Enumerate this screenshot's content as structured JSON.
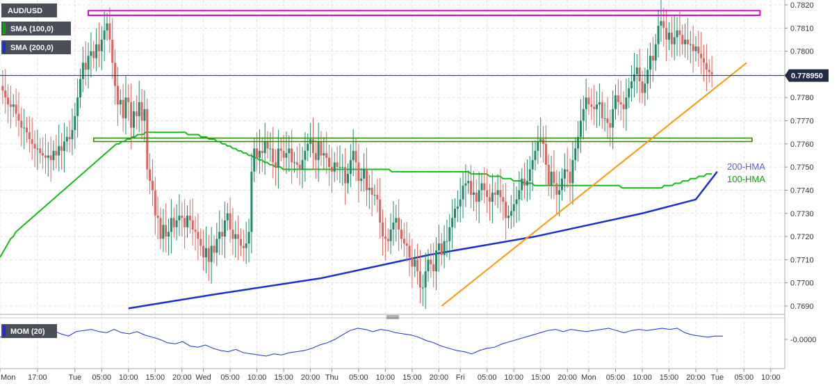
{
  "chart_data": {
    "type": "candlestick",
    "symbol": "AUD/USD",
    "legend": [
      {
        "label": "SMA (100,0)",
        "color": "#00aa00"
      },
      {
        "label": "SMA (200,0)",
        "color": "#1a2fd0"
      }
    ],
    "colors": {
      "up": "#1d8a69",
      "down": "#e0625b",
      "grid": "#dadada",
      "sma100": "#11c011",
      "sma200": "#1a2fd0",
      "trendline": "#ff9900",
      "resistance": "#dd00dd",
      "support": "#2d8a00",
      "momentum": "#1a2fd0"
    },
    "y_axis": {
      "min": 0.7685,
      "max": 0.7822,
      "ticks": [
        "0.7690",
        "0.7700",
        "0.7710",
        "0.7720",
        "0.7730",
        "0.7740",
        "0.7750",
        "0.7760",
        "0.7770",
        "0.7780",
        "0.7790",
        "0.7800",
        "0.7810",
        "0.7820"
      ]
    },
    "x_axis": {
      "ticks": [
        {
          "label": "Mon",
          "bar": 0
        },
        {
          "label": "17:00",
          "bar": 14
        },
        {
          "label": "Tue",
          "bar": 28
        },
        {
          "label": "05:00",
          "bar": 38
        },
        {
          "label": "10:00",
          "bar": 48
        },
        {
          "label": "15:00",
          "bar": 58
        },
        {
          "label": "20:00",
          "bar": 68
        },
        {
          "label": "Wed",
          "bar": 76
        },
        {
          "label": "05:00",
          "bar": 86
        },
        {
          "label": "10:00",
          "bar": 96
        },
        {
          "label": "15:00",
          "bar": 106
        },
        {
          "label": "20:00",
          "bar": 116
        },
        {
          "label": "Thu",
          "bar": 124
        },
        {
          "label": "05:00",
          "bar": 134
        },
        {
          "label": "10:00",
          "bar": 144
        },
        {
          "label": "15:00",
          "bar": 154
        },
        {
          "label": "20:00",
          "bar": 164
        },
        {
          "label": "Fri",
          "bar": 172
        },
        {
          "label": "05:00",
          "bar": 182
        },
        {
          "label": "10:00",
          "bar": 192
        },
        {
          "label": "15:00",
          "bar": 202
        },
        {
          "label": "20:00",
          "bar": 212
        },
        {
          "label": "Mon",
          "bar": 220
        },
        {
          "label": "05:00",
          "bar": 230
        },
        {
          "label": "10:00",
          "bar": 240
        },
        {
          "label": "15:00",
          "bar": 250
        },
        {
          "label": "20:00",
          "bar": 260
        },
        {
          "label": "Tue",
          "bar": 268
        },
        {
          "label": "05:00",
          "bar": 278
        },
        {
          "label": "10:00",
          "bar": 288
        }
      ]
    },
    "current_price": "0.778950",
    "current_value": 0.77895,
    "bar_step": 3.85,
    "closes": [
      0.7785,
      0.7783,
      0.778,
      0.7777,
      0.7776,
      0.7777,
      0.7773,
      0.777,
      0.7767,
      0.7767,
      0.7765,
      0.7762,
      0.776,
      0.7758,
      0.7758,
      0.7756,
      0.7755,
      0.7754,
      0.7755,
      0.7753,
      0.7757,
      0.7755,
      0.7759,
      0.7757,
      0.7761,
      0.7763,
      0.7762,
      0.7766,
      0.7772,
      0.778,
      0.7788,
      0.7795,
      0.7792,
      0.7798,
      0.78,
      0.7797,
      0.7803,
      0.78,
      0.7805,
      0.7809,
      0.7812,
      0.7805,
      0.7795,
      0.7785,
      0.7777,
      0.7779,
      0.7771,
      0.778,
      0.7778,
      0.7767,
      0.7774,
      0.7772,
      0.7778,
      0.777,
      0.7775,
      0.7749,
      0.7744,
      0.774,
      0.7729,
      0.7728,
      0.7719,
      0.7725,
      0.772,
      0.7722,
      0.7728,
      0.7724,
      0.7727,
      0.7729,
      0.7728,
      0.7724,
      0.7729,
      0.7727,
      0.7723,
      0.7722,
      0.7719,
      0.7716,
      0.7711,
      0.7715,
      0.7709,
      0.7716,
      0.7713,
      0.7719,
      0.7722,
      0.772,
      0.7727,
      0.773,
      0.7723,
      0.7719,
      0.7721,
      0.7719,
      0.7716,
      0.7715,
      0.7717,
      0.7722,
      0.7748,
      0.7758,
      0.7754,
      0.7757,
      0.7756,
      0.7761,
      0.7758,
      0.7758,
      0.7752,
      0.775,
      0.7758,
      0.7757,
      0.7754,
      0.7756,
      0.7758,
      0.7752,
      0.7752,
      0.7751,
      0.7749,
      0.7753,
      0.7757,
      0.776,
      0.7762,
      0.7756,
      0.7753,
      0.7761,
      0.7755,
      0.7756,
      0.7754,
      0.775,
      0.7748,
      0.7752,
      0.775,
      0.775,
      0.775,
      0.7743,
      0.7747,
      0.7753,
      0.7757,
      0.7752,
      0.7744,
      0.7745,
      0.7749,
      0.774,
      0.7741,
      0.7738,
      0.7738,
      0.7736,
      0.7726,
      0.772,
      0.7719,
      0.7718,
      0.7723,
      0.7726,
      0.7728,
      0.7723,
      0.7719,
      0.7717,
      0.7716,
      0.7711,
      0.7707,
      0.771,
      0.7705,
      0.7698,
      0.7698,
      0.7705,
      0.771,
      0.7708,
      0.7705,
      0.7714,
      0.7717,
      0.7712,
      0.7718,
      0.7718,
      0.7724,
      0.7728,
      0.7732,
      0.7733,
      0.7736,
      0.7742,
      0.7743,
      0.7744,
      0.7738,
      0.7739,
      0.7735,
      0.774,
      0.7743,
      0.774,
      0.7737,
      0.7735,
      0.7739,
      0.7738,
      0.774,
      0.7737,
      0.7735,
      0.7728,
      0.7729,
      0.7731,
      0.7734,
      0.7736,
      0.774,
      0.7745,
      0.7742,
      0.7744,
      0.7749,
      0.7753,
      0.7757,
      0.7761,
      0.7762,
      0.776,
      0.7751,
      0.7742,
      0.7748,
      0.7743,
      0.7738,
      0.774,
      0.7745,
      0.7749,
      0.7748,
      0.7743,
      0.7753,
      0.7758,
      0.7763,
      0.777,
      0.7775,
      0.778,
      0.7777,
      0.7776,
      0.7775,
      0.7777,
      0.7778,
      0.7771,
      0.7771,
      0.7769,
      0.7767,
      0.7775,
      0.7781,
      0.7778,
      0.7777,
      0.7775,
      0.778,
      0.7784,
      0.7787,
      0.779,
      0.7793,
      0.7787,
      0.7782,
      0.7786,
      0.7792,
      0.7798,
      0.7796,
      0.7803,
      0.7811,
      0.7813,
      0.781,
      0.7805,
      0.7808,
      0.7803,
      0.7806,
      0.7809,
      0.7807,
      0.7803,
      0.7805,
      0.7803,
      0.7803,
      0.78,
      0.7802,
      0.7799,
      0.7797,
      0.7795,
      0.7792,
      0.7791,
      0.779
    ],
    "sma100": [
      0.7711,
      0.7713,
      0.7715,
      0.7717,
      0.7719,
      0.772,
      0.7722,
      0.7723,
      0.7724,
      0.7725,
      0.7726,
      0.7727,
      0.7728,
      0.7729,
      0.773,
      0.7731,
      0.7732,
      0.7733,
      0.7734,
      0.7735,
      0.7736,
      0.7737,
      0.7738,
      0.7739,
      0.774,
      0.7741,
      0.7742,
      0.7743,
      0.7744,
      0.7745,
      0.7746,
      0.7747,
      0.7748,
      0.7749,
      0.775,
      0.7751,
      0.7752,
      0.7753,
      0.7754,
      0.7755,
      0.7756,
      0.7757,
      0.7758,
      0.7759,
      0.776,
      0.776,
      0.7761,
      0.7761,
      0.7762,
      0.7762,
      0.7763,
      0.7763,
      0.7764,
      0.7764,
      0.7764,
      0.7765,
      0.7765,
      0.7765,
      0.7765,
      0.7765,
      0.7765,
      0.7765,
      0.7765,
      0.7765,
      0.7765,
      0.7765,
      0.7765,
      0.7765,
      0.7765,
      0.7765,
      0.7765,
      0.7764,
      0.7764,
      0.7764,
      0.7764,
      0.7764,
      0.7763,
      0.7763,
      0.7763,
      0.7762,
      0.7762,
      0.7762,
      0.7761,
      0.7761,
      0.776,
      0.776,
      0.7759,
      0.7759,
      0.7758,
      0.7758,
      0.7757,
      0.7757,
      0.7756,
      0.7756,
      0.7755,
      0.7755,
      0.7754,
      0.7754,
      0.7753,
      0.7753,
      0.7752,
      0.7752,
      0.7751,
      0.7751,
      0.775,
      0.775,
      0.775,
      0.7749,
      0.7749,
      0.7749,
      0.7749,
      0.7749,
      0.7749,
      0.7749,
      0.7749,
      0.7749,
      0.7749,
      0.7749,
      0.7749,
      0.7749,
      0.7749,
      0.7749,
      0.7749,
      0.7749,
      0.7749,
      0.7749,
      0.7749,
      0.7749,
      0.7749,
      0.7749,
      0.7749,
      0.7749,
      0.7749,
      0.7749,
      0.7749,
      0.7749,
      0.7749,
      0.7749,
      0.7749,
      0.7749,
      0.7749,
      0.7749,
      0.7749,
      0.7749,
      0.7749,
      0.7749,
      0.7749,
      0.7749,
      0.7748,
      0.7748,
      0.7748,
      0.7748,
      0.7748,
      0.7748,
      0.7748,
      0.7748,
      0.7748,
      0.7748,
      0.7748,
      0.7748,
      0.7748,
      0.7748,
      0.7748,
      0.7748,
      0.7748,
      0.7748,
      0.7748,
      0.7748,
      0.7748,
      0.7748,
      0.7748,
      0.7748,
      0.7748,
      0.7748,
      0.7748,
      0.7748,
      0.7748,
      0.7748,
      0.7747,
      0.7747,
      0.7747,
      0.7747,
      0.7747,
      0.7747,
      0.7747,
      0.7746,
      0.7746,
      0.7746,
      0.7746,
      0.7746,
      0.7745,
      0.7745,
      0.7745,
      0.7745,
      0.7744,
      0.7744,
      0.7744,
      0.7744,
      0.7743,
      0.7743,
      0.7743,
      0.7743,
      0.7742,
      0.7742,
      0.7742,
      0.7742,
      0.7742,
      0.7742,
      0.7742,
      0.7742,
      0.7742,
      0.7742,
      0.7742,
      0.7742,
      0.7742,
      0.7742,
      0.7742,
      0.7742,
      0.7742,
      0.7742,
      0.7742,
      0.7742,
      0.7742,
      0.7742,
      0.7742,
      0.7742,
      0.7742,
      0.7742,
      0.7742,
      0.7742,
      0.7742,
      0.7742,
      0.7742,
      0.7742,
      0.7742,
      0.7741,
      0.7741,
      0.7741,
      0.7741,
      0.7741,
      0.7741,
      0.7741,
      0.7741,
      0.7741,
      0.7741,
      0.7741,
      0.7741,
      0.7741,
      0.7741,
      0.7741,
      0.7741,
      0.7742,
      0.7742,
      0.7742,
      0.7742,
      0.7743,
      0.7743,
      0.7743,
      0.7744,
      0.7744,
      0.7744,
      0.7745,
      0.7745,
      0.7745,
      0.7746,
      0.7746,
      0.7746,
      0.7747,
      0.7747,
      0.7747
    ],
    "sma200_points": [
      [
        48,
        0.7689
      ],
      [
        80,
        0.7695
      ],
      [
        120,
        0.7702
      ],
      [
        160,
        0.7712
      ],
      [
        200,
        0.772
      ],
      [
        240,
        0.773
      ],
      [
        260,
        0.7736
      ],
      [
        268,
        0.7748
      ]
    ],
    "lines": {
      "resistance": {
        "from_bar": 33,
        "to_bar": 284,
        "top": 0.78175,
        "bottom": 0.78155
      },
      "support": {
        "from_bar": 35,
        "to_bar": 281,
        "top": 0.77625,
        "bottom": 0.7761
      },
      "trendline": [
        [
          165,
          0.769
        ],
        [
          279,
          0.7795
        ]
      ]
    },
    "annotations": [
      {
        "text": "200-HMA",
        "color": "#6060d0"
      },
      {
        "text": "100-HMA",
        "color": "#00aa00"
      }
    ],
    "indicator": {
      "label": "MOM (20)",
      "axis_label": "-0.0000",
      "values": [
        0.2,
        0.4,
        0.5,
        0.6,
        0.4,
        0.8,
        0.9,
        0.8,
        0.5,
        0.3,
        0.7,
        0.8,
        0.9,
        0.7,
        0.6,
        0.9,
        0.6,
        0.5,
        0.7,
        0.4,
        0.2,
        0.0,
        -0.3,
        -0.4,
        -0.2,
        -0.6,
        -0.7,
        -0.5,
        -0.8,
        -1.0,
        -1.1,
        -0.9,
        -1.2,
        -1.3,
        -1.4,
        -1.5,
        -1.3,
        -1.4,
        -1.2,
        -1.1,
        -1.0,
        -0.8,
        -0.5,
        -0.3,
        0.0,
        0.4,
        0.8,
        1.0,
        0.9,
        0.7,
        0.9,
        0.8,
        0.6,
        0.5,
        0.4,
        0.2,
        -0.1,
        -0.3,
        -0.6,
        -0.8,
        -1.0,
        -1.1,
        -1.3,
        -1.0,
        -0.8,
        -0.7,
        -0.4,
        -0.2,
        0.0,
        0.2,
        0.4,
        0.6,
        0.8,
        0.9,
        0.7,
        0.9,
        0.8,
        0.7,
        0.8,
        0.9,
        1.0,
        0.8,
        0.6,
        0.8,
        0.9,
        0.8,
        0.9,
        1.0,
        0.9,
        1.0,
        0.6,
        0.4,
        0.3,
        0.2,
        0.3,
        0.3
      ]
    }
  }
}
